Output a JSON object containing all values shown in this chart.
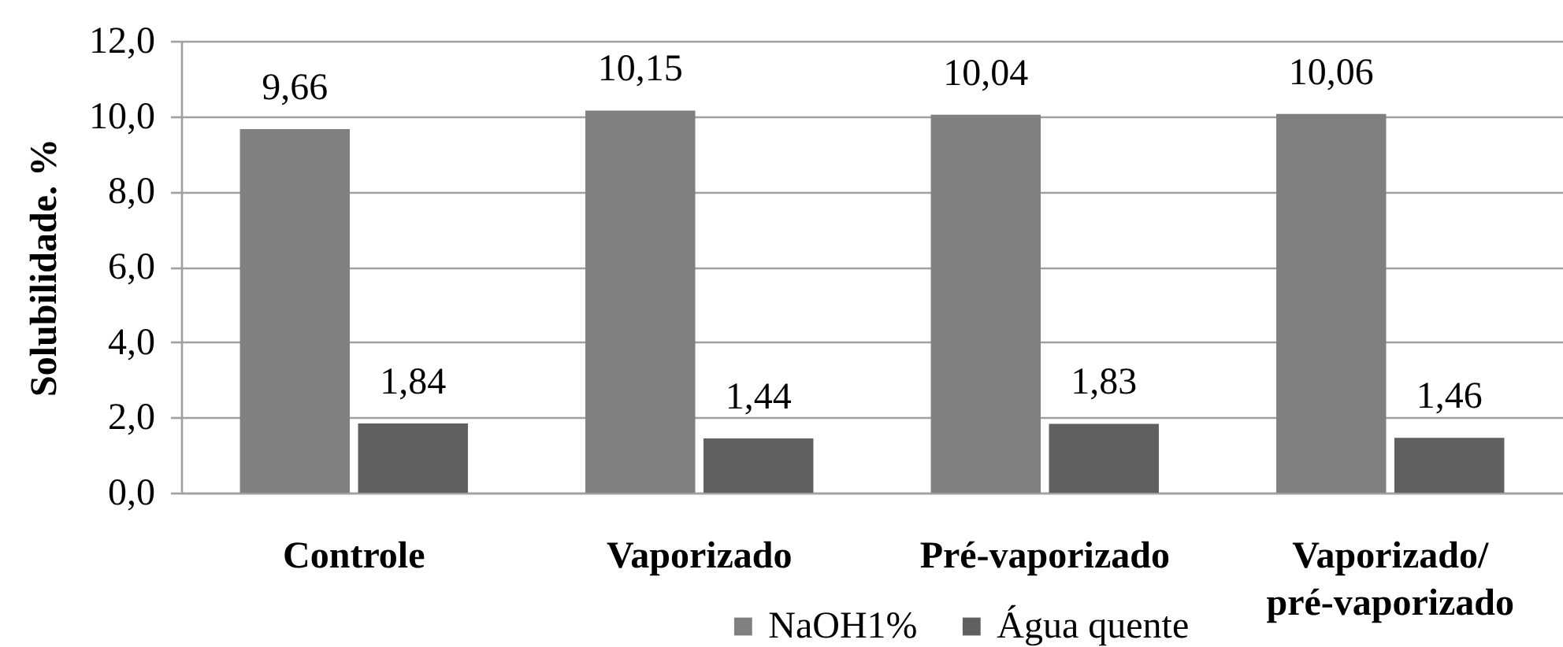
{
  "chart_data": {
    "type": "bar",
    "ylabel": "Solubilidade. %",
    "categories": [
      "Controle",
      "Vaporizado",
      "Pré-vaporizado",
      "Vaporizado/ pré-vaporizado"
    ],
    "series": [
      {
        "name": "NaOH1%",
        "color": "#808080",
        "values": [
          9.66,
          10.15,
          10.04,
          10.06
        ],
        "value_labels": [
          "9,66",
          "10,15",
          "10,04",
          "10,06"
        ]
      },
      {
        "name": "Água quente",
        "color": "#606060",
        "values": [
          1.84,
          1.44,
          1.83,
          1.46
        ],
        "value_labels": [
          "1,84",
          "1,44",
          "1,83",
          "1,46"
        ]
      }
    ],
    "ylim": [
      0,
      12
    ],
    "yticks": [
      {
        "value": 0,
        "label": "0,0"
      },
      {
        "value": 2,
        "label": "2,0"
      },
      {
        "value": 4,
        "label": "4,0"
      },
      {
        "value": 6,
        "label": "6,0"
      },
      {
        "value": 8,
        "label": "8,0"
      },
      {
        "value": 10,
        "label": "10,0"
      },
      {
        "value": 12,
        "label": "12,0"
      }
    ],
    "grid": "y",
    "legend": "bottom"
  }
}
